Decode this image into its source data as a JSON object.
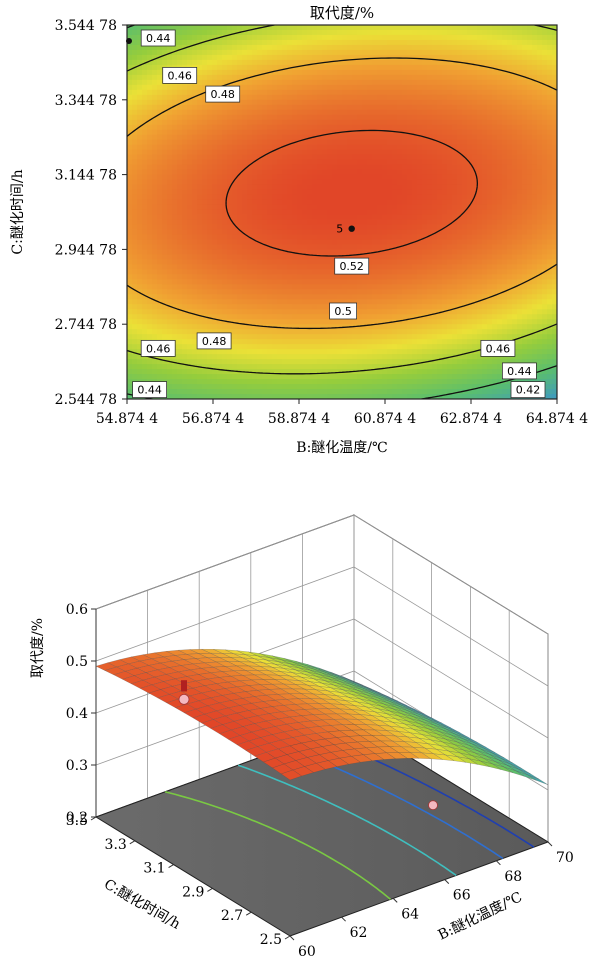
{
  "chart_data": [
    {
      "type": "contour",
      "title": "取代度/%",
      "xlabel": "B:醚化温度/℃",
      "ylabel": "C:醚化时间/h",
      "xlim": [
        54.8744,
        64.8744
      ],
      "ylim": [
        2.54478,
        3.54478
      ],
      "xticks": [
        "54.874 4",
        "56.874 4",
        "58.874 4",
        "60.874 4",
        "62.874 4",
        "64.874 4"
      ],
      "yticks": [
        "2.544 78",
        "2.744 78",
        "2.944 78",
        "3.144 78",
        "3.344 78",
        "3.544 78"
      ],
      "optimum": {
        "x": 60.1,
        "y": 3.0,
        "label": "5"
      },
      "design_points": [
        {
          "x": 54.8744,
          "y": 3.5448
        }
      ],
      "contour_levels": [
        0.42,
        0.44,
        0.46,
        0.48,
        0.5,
        0.52
      ],
      "contour_labels": [
        {
          "text": "0.44",
          "x": 55.6,
          "y": 3.51
        },
        {
          "text": "0.46",
          "x": 56.1,
          "y": 3.41
        },
        {
          "text": "0.48",
          "x": 57.1,
          "y": 3.36
        },
        {
          "text": "0.52",
          "x": 60.1,
          "y": 2.9
        },
        {
          "text": "0.5",
          "x": 59.9,
          "y": 2.78
        },
        {
          "text": "0.48",
          "x": 56.9,
          "y": 2.7
        },
        {
          "text": "0.46",
          "x": 55.6,
          "y": 2.68
        },
        {
          "text": "0.44",
          "x": 55.4,
          "y": 2.57
        },
        {
          "text": "0.46",
          "x": 63.5,
          "y": 2.68
        },
        {
          "text": "0.44",
          "x": 64.0,
          "y": 2.62
        },
        {
          "text": "0.42",
          "x": 64.2,
          "y": 2.57
        }
      ]
    },
    {
      "type": "surface",
      "title": "",
      "xlabel": "B:醚化温度/℃",
      "ylabel": "C:醚化时间/h",
      "zlabel": "取代度/%",
      "xlim": [
        60,
        70
      ],
      "ylim": [
        2.5,
        3.5
      ],
      "zlim": [
        0.2,
        0.6
      ],
      "xticks": [
        "60",
        "62",
        "64",
        "66",
        "68",
        "70"
      ],
      "yticks": [
        "3.5",
        "3.3",
        "3.1",
        "2.9",
        "2.7",
        "2.5"
      ],
      "zticks": [
        "0.6",
        "0.5",
        "0.4",
        "0.3",
        "0.2"
      ],
      "design_points": [
        {
          "x": 60,
          "y": 3.5,
          "z": 0.43
        },
        {
          "x": 70,
          "y": 2.5,
          "z": 0.39
        }
      ]
    }
  ]
}
